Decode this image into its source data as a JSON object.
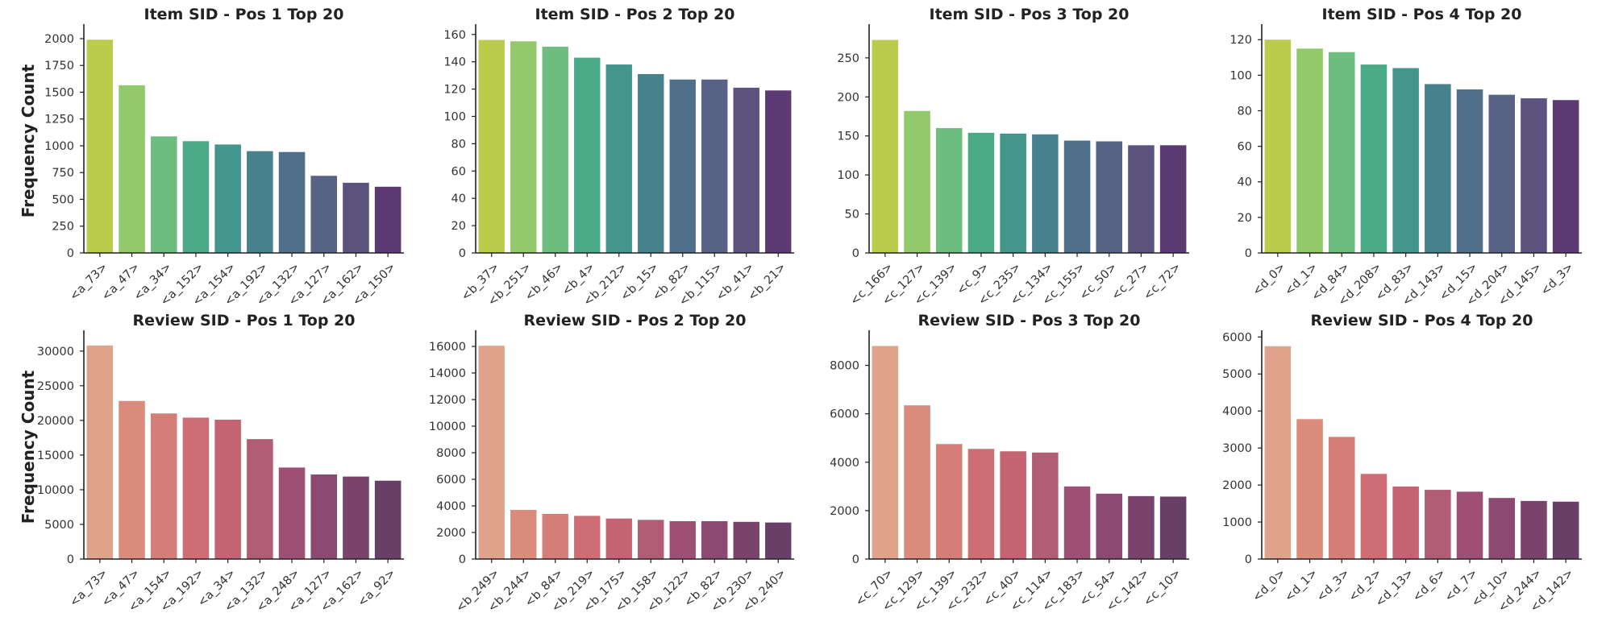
{
  "figure": {
    "ylabel": "Frequency Count"
  },
  "palettes": {
    "item": [
      "#bbcc4d",
      "#92c96a",
      "#6dbd7e",
      "#4aa987",
      "#42968c",
      "#47818c",
      "#4f6f8a",
      "#566286",
      "#5b527e",
      "#5d3b72"
    ],
    "review": [
      "#e0a28a",
      "#da8b7b",
      "#d57d77",
      "#cf6d75",
      "#c46473",
      "#b05d75",
      "#9d5073",
      "#8c4971",
      "#7a436c",
      "#684067"
    ]
  },
  "chart_data": [
    {
      "type": "bar",
      "title": "Item SID - Pos 1 Top 20",
      "ylabel": "Frequency Count",
      "palette": "item",
      "categories": [
        "<a_73>",
        "<a_47>",
        "<a_34>",
        "<a_152>",
        "<a_154>",
        "<a_192>",
        "<a_132>",
        "<a_127>",
        "<a_162>",
        "<a_150>"
      ],
      "values": [
        1990,
        1565,
        1088,
        1043,
        1012,
        950,
        942,
        720,
        655,
        618
      ],
      "ylim": [
        0,
        2090
      ],
      "yticks": [
        0,
        250,
        500,
        750,
        1000,
        1250,
        1500,
        1750,
        2000
      ],
      "ytick_labels": [
        "0",
        "250",
        "500",
        "750",
        "1000",
        "1250",
        "1500",
        "1750",
        "2000"
      ]
    },
    {
      "type": "bar",
      "title": "Item SID - Pos 2 Top 20",
      "ylabel": "",
      "palette": "item",
      "categories": [
        "<b_37>",
        "<b_251>",
        "<b_46>",
        "<b_4>",
        "<b_212>",
        "<b_15>",
        "<b_82>",
        "<b_115>",
        "<b_41>",
        "<b_21>"
      ],
      "values": [
        156,
        155,
        151,
        143,
        138,
        131,
        127,
        127,
        121,
        119
      ],
      "ylim": [
        0,
        164
      ],
      "yticks": [
        0,
        20,
        40,
        60,
        80,
        100,
        120,
        140,
        160
      ],
      "ytick_labels": [
        "0",
        "20",
        "40",
        "60",
        "80",
        "100",
        "120",
        "140",
        "160"
      ]
    },
    {
      "type": "bar",
      "title": "Item SID - Pos 3 Top 20",
      "ylabel": "",
      "palette": "item",
      "categories": [
        "<c_166>",
        "<c_127>",
        "<c_139>",
        "<c_9>",
        "<c_235>",
        "<c_134>",
        "<c_155>",
        "<c_50>",
        "<c_27>",
        "<c_72>"
      ],
      "values": [
        273,
        182,
        160,
        154,
        153,
        152,
        144,
        143,
        138,
        138
      ],
      "ylim": [
        0,
        287
      ],
      "yticks": [
        0,
        50,
        100,
        150,
        200,
        250
      ],
      "ytick_labels": [
        "0",
        "50",
        "100",
        "150",
        "200",
        "250"
      ]
    },
    {
      "type": "bar",
      "title": "Item SID - Pos 4 Top 20",
      "ylabel": "",
      "palette": "item",
      "categories": [
        "<d_0>",
        "<d_1>",
        "<d_84>",
        "<d_208>",
        "<d_83>",
        "<d_143>",
        "<d_15>",
        "<d_204>",
        "<d_145>",
        "<d_3>"
      ],
      "values": [
        120,
        115,
        113,
        106,
        104,
        95,
        92,
        89,
        87,
        86
      ],
      "ylim": [
        0,
        126
      ],
      "yticks": [
        0,
        20,
        40,
        60,
        80,
        100,
        120
      ],
      "ytick_labels": [
        "0",
        "20",
        "40",
        "60",
        "80",
        "100",
        "120"
      ]
    },
    {
      "type": "bar",
      "title": "Review SID - Pos 1 Top 20",
      "ylabel": "Frequency Count",
      "palette": "review",
      "categories": [
        "<a_73>",
        "<a_47>",
        "<a_154>",
        "<a_192>",
        "<a_34>",
        "<a_132>",
        "<a_248>",
        "<a_127>",
        "<a_162>",
        "<a_92>"
      ],
      "values": [
        30800,
        22800,
        21000,
        20400,
        20100,
        17300,
        13200,
        12200,
        11900,
        11300
      ],
      "ylim": [
        0,
        32300
      ],
      "yticks": [
        0,
        5000,
        10000,
        15000,
        20000,
        25000,
        30000
      ],
      "ytick_labels": [
        "0",
        "5000",
        "10000",
        "15000",
        "20000",
        "25000",
        "30000"
      ]
    },
    {
      "type": "bar",
      "title": "Review SID - Pos 2 Top 20",
      "ylabel": "",
      "palette": "review",
      "categories": [
        "<b_249>",
        "<b_244>",
        "<b_84>",
        "<b_219>",
        "<b_175>",
        "<b_158>",
        "<b_122>",
        "<b_82>",
        "<b_230>",
        "<b_240>"
      ],
      "values": [
        16050,
        3700,
        3400,
        3250,
        3050,
        2950,
        2850,
        2850,
        2800,
        2750
      ],
      "ylim": [
        0,
        16850
      ],
      "yticks": [
        0,
        2000,
        4000,
        6000,
        8000,
        10000,
        12000,
        14000,
        16000
      ],
      "ytick_labels": [
        "0",
        "2000",
        "4000",
        "6000",
        "8000",
        "10000",
        "12000",
        "14000",
        "16000"
      ]
    },
    {
      "type": "bar",
      "title": "Review SID - Pos 3 Top 20",
      "ylabel": "",
      "palette": "review",
      "categories": [
        "<c_70>",
        "<c_129>",
        "<c_139>",
        "<c_232>",
        "<c_40>",
        "<c_114>",
        "<c_183>",
        "<c_54>",
        "<c_142>",
        "<c_10>"
      ],
      "values": [
        8800,
        6350,
        4750,
        4550,
        4450,
        4400,
        3000,
        2700,
        2600,
        2580
      ],
      "ylim": [
        0,
        9250
      ],
      "yticks": [
        0,
        2000,
        4000,
        6000,
        8000
      ],
      "ytick_labels": [
        "0",
        "2000",
        "4000",
        "6000",
        "8000"
      ]
    },
    {
      "type": "bar",
      "title": "Review SID - Pos 4 Top 20",
      "ylabel": "",
      "palette": "review",
      "categories": [
        "<d_0>",
        "<d_1>",
        "<d_3>",
        "<d_2>",
        "<d_13>",
        "<d_6>",
        "<d_7>",
        "<d_10>",
        "<d_244>",
        "<d_142>"
      ],
      "values": [
        5750,
        3780,
        3300,
        2300,
        1960,
        1870,
        1820,
        1650,
        1570,
        1550
      ],
      "ylim": [
        0,
        6050
      ],
      "yticks": [
        0,
        1000,
        2000,
        3000,
        4000,
        5000,
        6000
      ],
      "ytick_labels": [
        "0",
        "1000",
        "2000",
        "3000",
        "4000",
        "5000",
        "6000"
      ]
    }
  ]
}
